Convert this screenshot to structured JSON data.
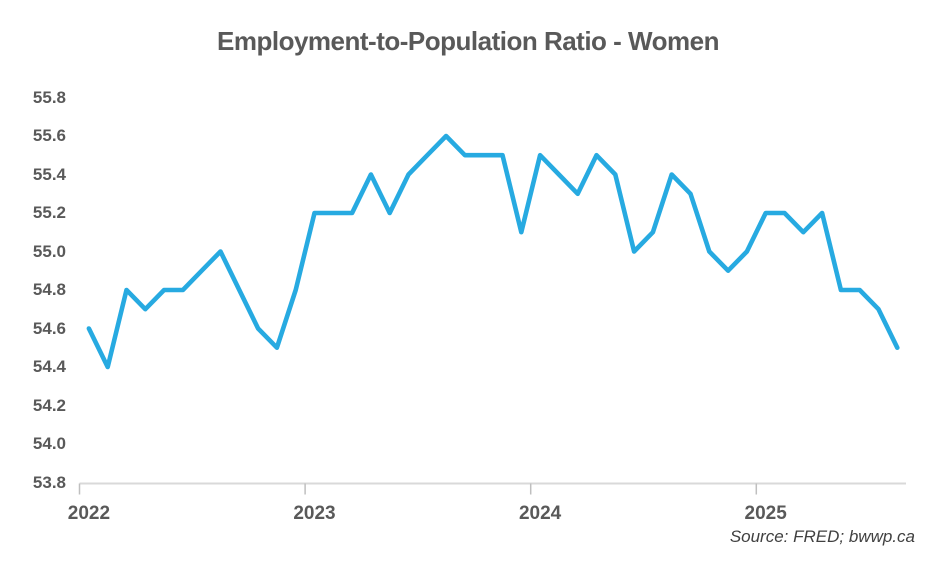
{
  "chart": {
    "title": "Employment-to-Population Ratio - Women",
    "source": "Source: FRED; bwwp.ca"
  },
  "chart_data": {
    "type": "line",
    "title": "Employment-to-Population Ratio - Women",
    "xlabel": "",
    "ylabel": "",
    "ylim": [
      53.8,
      55.8
    ],
    "y_tick_step": 0.2,
    "grid": false,
    "legend": false,
    "line_color": "#27AAE1",
    "axis_line_color": "#D9D9D9",
    "tick_color": "#BFBFBF",
    "text_color": "#595959",
    "y_tick_labels": [
      "55.8",
      "55.6",
      "55.4",
      "55.2",
      "55.0",
      "54.8",
      "54.6",
      "54.4",
      "54.2",
      "54.0",
      "53.8"
    ],
    "x_tick_labels": [
      "2022",
      "2023",
      "2024",
      "2025"
    ],
    "x": [
      "2022-01",
      "2022-02",
      "2022-03",
      "2022-04",
      "2022-05",
      "2022-06",
      "2022-07",
      "2022-08",
      "2022-09",
      "2022-10",
      "2022-11",
      "2022-12",
      "2023-01",
      "2023-02",
      "2023-03",
      "2023-04",
      "2023-05",
      "2023-06",
      "2023-07",
      "2023-08",
      "2023-09",
      "2023-10",
      "2023-11",
      "2023-12",
      "2024-01",
      "2024-02",
      "2024-03",
      "2024-04",
      "2024-05",
      "2024-06",
      "2024-07",
      "2024-08",
      "2024-09",
      "2024-10",
      "2024-11",
      "2024-12",
      "2025-01",
      "2025-02",
      "2025-03",
      "2025-04",
      "2025-05",
      "2025-06",
      "2025-07",
      "2025-08"
    ],
    "values": [
      54.6,
      54.4,
      54.8,
      54.7,
      54.8,
      54.8,
      54.9,
      55.0,
      54.8,
      54.6,
      54.5,
      54.8,
      55.2,
      55.2,
      55.2,
      55.4,
      55.2,
      55.4,
      55.5,
      55.6,
      55.5,
      55.5,
      55.5,
      55.1,
      55.5,
      55.4,
      55.3,
      55.5,
      55.4,
      55.0,
      55.1,
      55.4,
      55.3,
      55.0,
      54.9,
      55.0,
      55.2,
      55.2,
      55.1,
      55.2,
      54.8,
      54.8,
      54.7,
      54.5
    ],
    "source": "Source: FRED; bwwp.ca"
  }
}
